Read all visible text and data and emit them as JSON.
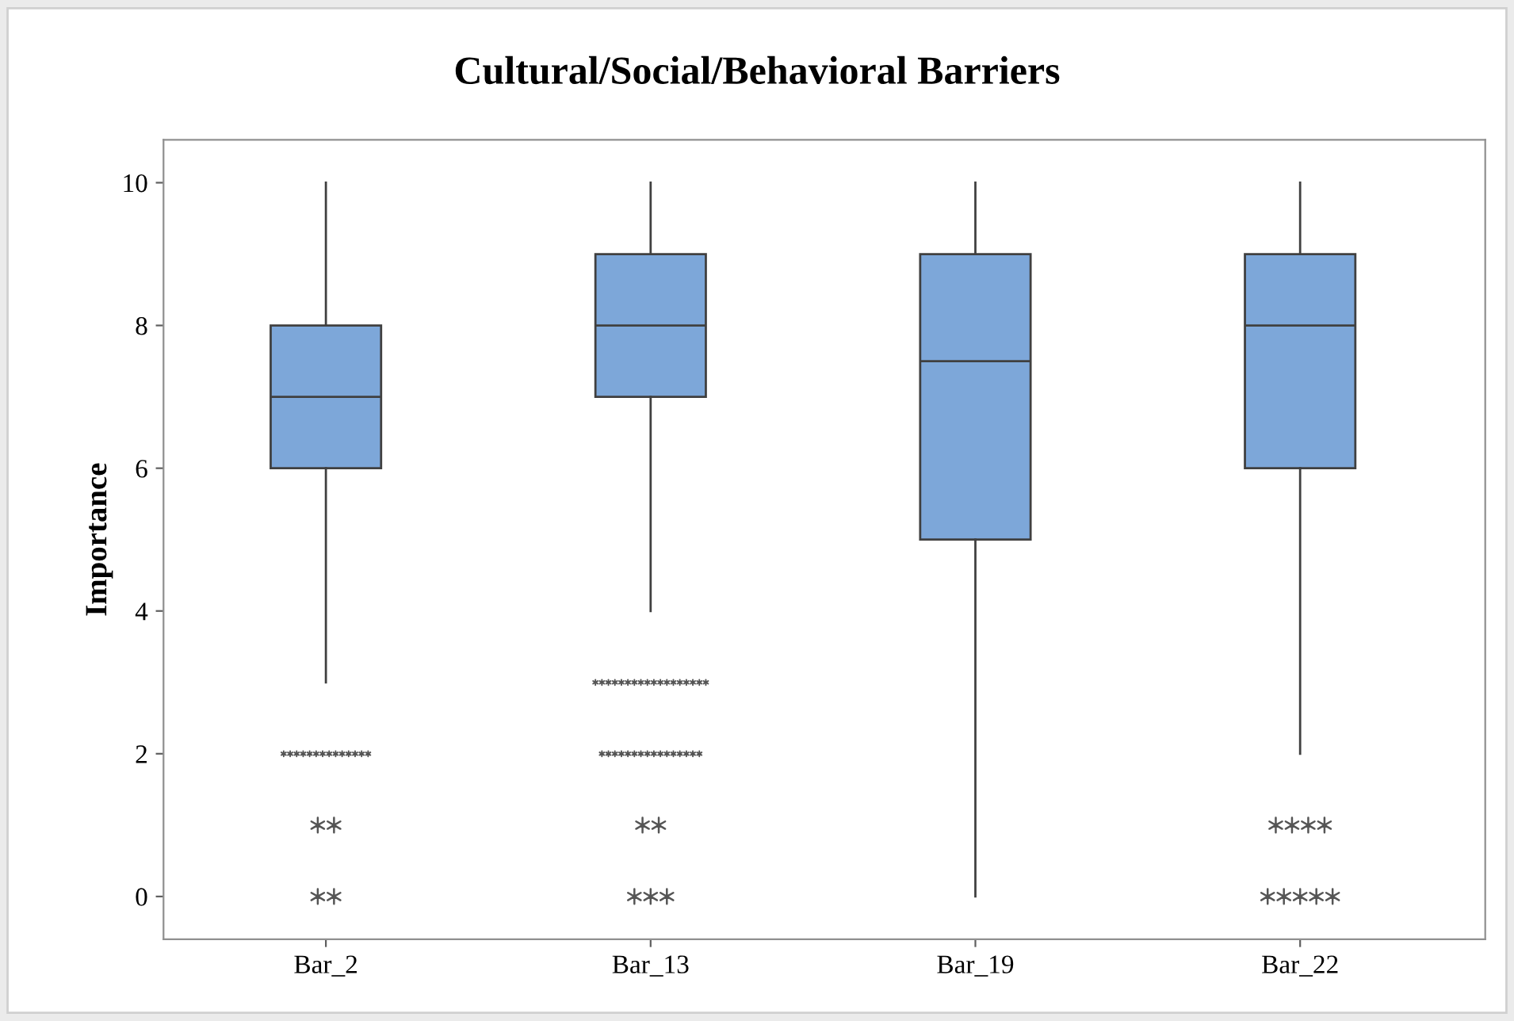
{
  "chart_data": {
    "type": "box",
    "title": "Cultural/Social/Behavioral Barriers",
    "ylabel": "Importance",
    "categories": [
      "Bar_2",
      "Bar_13",
      "Bar_19",
      "Bar_22"
    ],
    "color": "#7da7d9",
    "ylim": [
      -0.6,
      10.6
    ],
    "yticks": [
      0,
      2,
      4,
      6,
      8,
      10
    ],
    "grid": false,
    "legend": false,
    "marker": "star",
    "boxes": [
      {
        "low": 3,
        "q1": 6,
        "median": 7,
        "q3": 8,
        "high": 10,
        "outliers": [
          2,
          2,
          2,
          2,
          2,
          2,
          2,
          2,
          2,
          2,
          2,
          2,
          2,
          2,
          1,
          1,
          0,
          0
        ]
      },
      {
        "low": 4,
        "q1": 7,
        "median": 8,
        "q3": 9,
        "high": 10,
        "outliers": [
          3,
          3,
          3,
          3,
          3,
          3,
          3,
          3,
          3,
          3,
          3,
          3,
          3,
          3,
          3,
          3,
          3,
          3,
          2,
          2,
          2,
          2,
          2,
          2,
          2,
          2,
          2,
          2,
          2,
          2,
          2,
          2,
          2,
          2,
          1,
          1,
          0,
          0,
          0
        ]
      },
      {
        "low": 0,
        "q1": 5,
        "median": 7.5,
        "q3": 9,
        "high": 10
      },
      {
        "low": 2,
        "q1": 6,
        "median": 8,
        "q3": 9,
        "high": 10,
        "outliers": [
          1,
          1,
          1,
          1,
          0,
          0,
          0,
          0,
          0
        ]
      }
    ]
  }
}
